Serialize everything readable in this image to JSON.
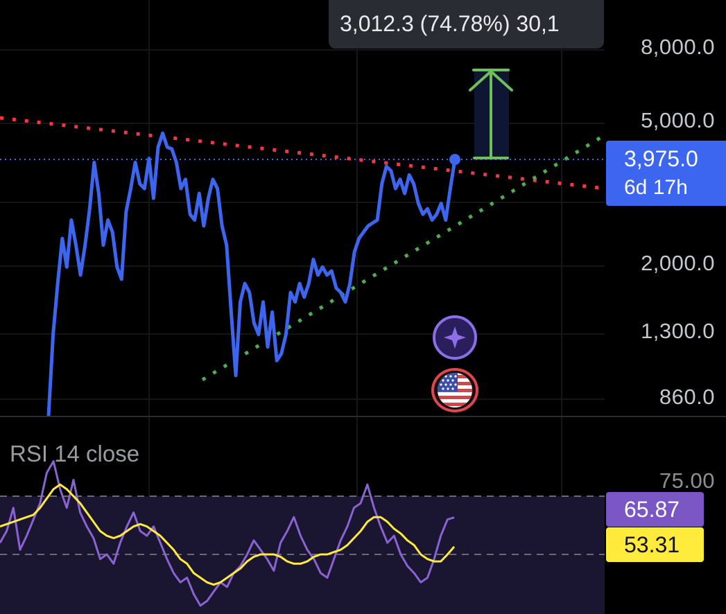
{
  "tooltip": {
    "text": "3,012.3 (74.78%) 30,1"
  },
  "price_badge": {
    "value": "3,975.0",
    "countdown": "6d 17h"
  },
  "price_axis_ticks": [
    "8,000.0",
    "5,000.0",
    "2,000.0",
    "1,300.0",
    "860.0"
  ],
  "rsi": {
    "title": "RSI 14 close",
    "upper_tick": "75.00",
    "rsi_value": "65.87",
    "ma_value": "53.31",
    "colors": {
      "rsi": "#8a63d2",
      "ma": "#ffeb3b",
      "band": "#1a1530"
    }
  },
  "icons": {
    "assistant": "sparkle-icon",
    "flag": "us-flag-icon",
    "target_arrow": "arrow-up-icon"
  },
  "colors": {
    "price_line": "#3d66f0",
    "resistance": "#f23645",
    "support": "#4caf50",
    "arrow": "#4caf50"
  },
  "chart_data": [
    {
      "type": "line",
      "title": "",
      "y_scale": "log",
      "y_ticks": [
        8000,
        5000,
        2000,
        1300,
        860
      ],
      "current_price": 3975.0,
      "target_move": {
        "change": 3012.3,
        "percent": 74.78
      },
      "series": [
        {
          "values": [
            760,
            1300,
            1800,
            2400,
            2000,
            2700,
            2300,
            1900,
            2300,
            2900,
            3900,
            3200,
            2300,
            2700,
            2500,
            2000,
            1850,
            2850,
            3300,
            3900,
            3400,
            3300,
            4000,
            3100,
            4300,
            4700,
            4300,
            4250,
            3900,
            3300,
            3500,
            2800,
            2700,
            3200,
            2600,
            3100,
            3500,
            3300,
            2600,
            2300,
            1500,
            1000,
            1600,
            1800,
            1700,
            1400,
            1300,
            1600,
            1200,
            1500,
            1100,
            1150,
            1300,
            1700,
            1600,
            1800,
            1650,
            1800,
            2100,
            1900,
            2000,
            1900,
            1950,
            1750,
            1700,
            1600,
            1800,
            2200,
            2400,
            2500,
            2600,
            2650,
            2700,
            3400,
            3800,
            3700,
            3300,
            3500,
            3200,
            3600,
            3400,
            3000,
            2800,
            2900,
            2700,
            2800,
            3000,
            2700,
            3300,
            3975
          ]
        }
      ]
    },
    {
      "type": "line",
      "title": "RSI 14 close",
      "ylim": [
        0,
        100
      ],
      "y_ticks": [
        75
      ],
      "series": [
        {
          "values": [
            55,
            60,
            70,
            52,
            58,
            65,
            72,
            85,
            90,
            78,
            70,
            82,
            68,
            62,
            57,
            48,
            50,
            46,
            55,
            62,
            68,
            60,
            58,
            62,
            55,
            48,
            42,
            38,
            40,
            33,
            28,
            30,
            34,
            38,
            36,
            42,
            45,
            50,
            56,
            52,
            48,
            43,
            55,
            60,
            66,
            58,
            52,
            48,
            42,
            40,
            48,
            56,
            62,
            70,
            72,
            80,
            70,
            62,
            55,
            58,
            50,
            45,
            42,
            38,
            40,
            48,
            58,
            65,
            65.87
          ]
        },
        {
          "values": [
            62,
            63,
            64,
            65,
            66,
            67,
            70,
            74,
            78,
            80,
            78,
            75,
            72,
            68,
            64,
            60,
            58,
            57,
            58,
            60,
            62,
            63,
            62,
            60,
            58,
            55,
            52,
            48,
            46,
            42,
            40,
            38,
            37,
            38,
            40,
            42,
            44,
            47,
            49,
            50,
            50,
            50,
            49,
            47,
            46,
            46,
            47,
            49,
            50,
            50,
            51,
            52,
            54,
            57,
            60,
            64,
            66,
            66,
            64,
            61,
            59,
            56,
            54,
            50,
            48,
            47,
            47,
            50,
            53.31
          ]
        }
      ]
    }
  ]
}
